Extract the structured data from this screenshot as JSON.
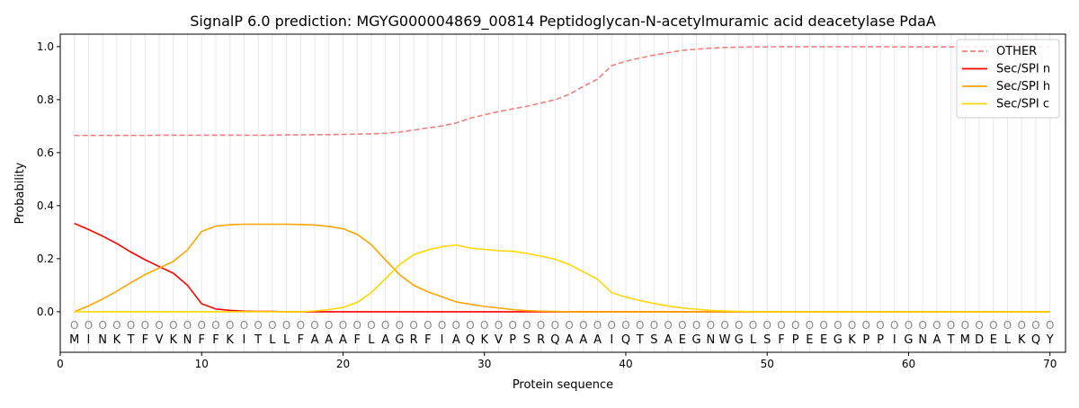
{
  "chart_data": {
    "type": "line",
    "title": "SignalP 6.0 prediction: MGYG000004869_00814 Peptidoglycan-N-acetylmuramic acid deacetylase PdaA",
    "xlabel": "Protein sequence",
    "ylabel": "Probability",
    "xlim": [
      0,
      71.1
    ],
    "ylim": [
      -0.153,
      1.047
    ],
    "xticks": [
      0,
      10,
      20,
      30,
      40,
      50,
      60,
      70
    ],
    "yticks": [
      0.0,
      0.2,
      0.4,
      0.6,
      0.8,
      1.0
    ],
    "ytick_labels": [
      "0.0",
      "0.2",
      "0.4",
      "0.6",
      "0.8",
      "1.0"
    ],
    "grid": "vertical per residue",
    "legend_position": "top-right",
    "sequence": [
      "M",
      "I",
      "N",
      "K",
      "T",
      "F",
      "V",
      "K",
      "N",
      "F",
      "F",
      "K",
      "I",
      "T",
      "L",
      "L",
      "F",
      "A",
      "A",
      "A",
      "F",
      "L",
      "A",
      "G",
      "R",
      "F",
      "I",
      "A",
      "Q",
      "K",
      "V",
      "P",
      "S",
      "R",
      "Q",
      "A",
      "A",
      "A",
      "I",
      "Q",
      "T",
      "S",
      "A",
      "E",
      "G",
      "N",
      "W",
      "G",
      "L",
      "S",
      "F",
      "P",
      "E",
      "E",
      "G",
      "K",
      "P",
      "P",
      "I",
      "G",
      "N",
      "A",
      "T",
      "M",
      "D",
      "E",
      "L",
      "K",
      "Q",
      "Y"
    ],
    "region_label": "O",
    "series": [
      {
        "name": "OTHER",
        "color": "#f08080",
        "dashed": true,
        "values": [
          0.665,
          0.665,
          0.665,
          0.665,
          0.665,
          0.665,
          0.666,
          0.666,
          0.666,
          0.666,
          0.666,
          0.666,
          0.666,
          0.666,
          0.666,
          0.667,
          0.667,
          0.668,
          0.668,
          0.669,
          0.67,
          0.671,
          0.673,
          0.678,
          0.685,
          0.693,
          0.701,
          0.712,
          0.73,
          0.743,
          0.755,
          0.765,
          0.775,
          0.787,
          0.8,
          0.82,
          0.85,
          0.877,
          0.928,
          0.945,
          0.957,
          0.968,
          0.977,
          0.986,
          0.99,
          0.994,
          0.997,
          0.998,
          0.999,
          0.999,
          1.0,
          1.0,
          1.0,
          1.0,
          1.0,
          1.0,
          1.0,
          1.0,
          0.999,
          0.999,
          0.999,
          0.999,
          0.999,
          0.999,
          0.999,
          0.999,
          0.999,
          0.999,
          0.999,
          0.999
        ]
      },
      {
        "name": "Sec/SPI n",
        "color": "#ff0000",
        "dashed": false,
        "values": [
          0.333,
          0.31,
          0.285,
          0.257,
          0.225,
          0.196,
          0.17,
          0.145,
          0.1,
          0.03,
          0.01,
          0.005,
          0.002,
          0.001,
          0.001,
          0,
          0,
          0,
          0,
          0,
          0,
          0,
          0,
          0,
          0,
          0,
          0,
          0,
          0,
          0,
          0,
          0,
          0,
          0,
          0,
          0,
          0,
          0,
          0,
          0,
          0,
          0,
          0,
          0,
          0,
          0,
          0,
          0,
          0,
          0,
          0,
          0,
          0,
          0,
          0,
          0,
          0,
          0,
          0,
          0,
          0,
          0,
          0,
          0,
          0,
          0,
          0,
          0,
          0,
          0
        ]
      },
      {
        "name": "Sec/SPI h",
        "color": "#ffa500",
        "dashed": false,
        "values": [
          0,
          0.022,
          0.048,
          0.077,
          0.11,
          0.14,
          0.165,
          0.19,
          0.233,
          0.303,
          0.323,
          0.328,
          0.33,
          0.33,
          0.33,
          0.33,
          0.329,
          0.327,
          0.322,
          0.313,
          0.292,
          0.253,
          0.195,
          0.14,
          0.1,
          0.075,
          0.056,
          0.037,
          0.028,
          0.02,
          0.014,
          0.008,
          0.004,
          0.002,
          0.001,
          0,
          0,
          0,
          0,
          0,
          0,
          0,
          0,
          0,
          0,
          0,
          0,
          0,
          0,
          0,
          0,
          0,
          0,
          0,
          0,
          0,
          0,
          0,
          0,
          0,
          0,
          0,
          0,
          0,
          0,
          0,
          0,
          0,
          0,
          0
        ]
      },
      {
        "name": "Sec/SPI c",
        "color": "#ffd700",
        "dashed": false,
        "values": [
          0,
          0,
          0,
          0,
          0,
          0,
          0,
          0,
          0,
          0,
          0,
          0,
          0,
          0,
          0,
          0,
          0,
          0.003,
          0.008,
          0.016,
          0.035,
          0.072,
          0.125,
          0.178,
          0.215,
          0.233,
          0.245,
          0.252,
          0.24,
          0.235,
          0.23,
          0.228,
          0.22,
          0.21,
          0.198,
          0.178,
          0.15,
          0.123,
          0.072,
          0.055,
          0.042,
          0.031,
          0.022,
          0.014,
          0.009,
          0.005,
          0.003,
          0.001,
          0,
          0,
          0,
          0,
          0,
          0,
          0,
          0,
          0,
          0,
          0,
          0,
          0,
          0,
          0,
          0,
          0,
          0,
          0,
          0,
          0,
          0
        ]
      }
    ]
  }
}
